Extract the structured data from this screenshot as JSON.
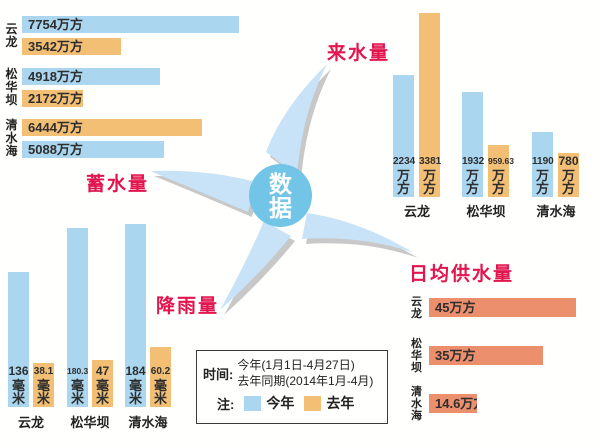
{
  "center": {
    "label": "数\n据"
  },
  "section_titles": {
    "storage": "蓄水量",
    "inflow": "来水量",
    "rainfall": "降雨量",
    "supply": "日均供水量"
  },
  "legend": {
    "time_label": "时间:",
    "time_this_year": "今年(1月1日-4月27日)",
    "time_last_year": "去年同期(2014年1月-4月)",
    "note_label": "注:",
    "this_year_label": "今年",
    "last_year_label": "去年"
  },
  "colors": {
    "this_year": "#aad6f0",
    "last_year": "#f3bf75",
    "supply_bar": "#ec8f6d",
    "title_red": "#e2154f",
    "center_circle": "#73c5e8",
    "blade": "#c8e3f7",
    "blade_shadow": "#c8c8c8",
    "bar_text": "#2e2e2e"
  },
  "chart_data": [
    {
      "id": "storage",
      "type": "bar",
      "orientation": "horizontal",
      "title": "蓄水量",
      "unit": "万方",
      "max_value": 7754,
      "legend_series": [
        "今年",
        "去年"
      ],
      "groups": [
        {
          "category": "云龙",
          "bars": [
            {
              "series": "今年",
              "value": 7754
            },
            {
              "series": "去年",
              "value": 3542
            }
          ]
        },
        {
          "category": "松华坝",
          "bars": [
            {
              "series": "今年",
              "value": 4918
            },
            {
              "series": "去年",
              "value": 2172
            }
          ]
        },
        {
          "category": "清水海",
          "bars": [
            {
              "series": "去年",
              "value": 6444
            },
            {
              "series": "今年",
              "value": 5088
            }
          ]
        }
      ]
    },
    {
      "id": "inflow",
      "type": "bar",
      "orientation": "vertical",
      "title": "来水量",
      "unit": "万方",
      "max_value": 3381,
      "legend_series": [
        "今年",
        "去年"
      ],
      "groups": [
        {
          "category": "云龙",
          "bars": [
            {
              "series": "今年",
              "value": 2234
            },
            {
              "series": "去年",
              "value": 3381
            }
          ]
        },
        {
          "category": "松华坝",
          "bars": [
            {
              "series": "今年",
              "value": 1932
            },
            {
              "series": "去年",
              "value": 959.63
            }
          ]
        },
        {
          "category": "清水海",
          "bars": [
            {
              "series": "今年",
              "value": 1190
            },
            {
              "series": "去年",
              "value": 780
            }
          ]
        }
      ]
    },
    {
      "id": "rainfall",
      "type": "bar",
      "orientation": "vertical",
      "title": "降雨量",
      "unit": "毫米",
      "max_value": 184,
      "legend_series": [
        "今年",
        "去年"
      ],
      "groups": [
        {
          "category": "云龙",
          "bars": [
            {
              "series": "今年",
              "value": 136
            },
            {
              "series": "去年",
              "value": 38.1
            }
          ]
        },
        {
          "category": "松华坝",
          "bars": [
            {
              "series": "今年",
              "value": 180.3
            },
            {
              "series": "去年",
              "value": 47
            }
          ]
        },
        {
          "category": "清水海",
          "bars": [
            {
              "series": "今年",
              "value": 184
            },
            {
              "series": "去年",
              "value": 60.2
            }
          ]
        }
      ]
    },
    {
      "id": "supply",
      "type": "bar",
      "orientation": "horizontal",
      "title": "日均供水量",
      "unit": "万方",
      "max_value": 45,
      "legend_series": [
        "今年"
      ],
      "groups": [
        {
          "category": "云龙",
          "bars": [
            {
              "series": "今年",
              "value": 45
            }
          ]
        },
        {
          "category": "松华坝",
          "bars": [
            {
              "series": "今年",
              "value": 35
            }
          ]
        },
        {
          "category": "清水海",
          "bars": [
            {
              "series": "今年",
              "value": 14.6
            }
          ]
        }
      ]
    }
  ]
}
